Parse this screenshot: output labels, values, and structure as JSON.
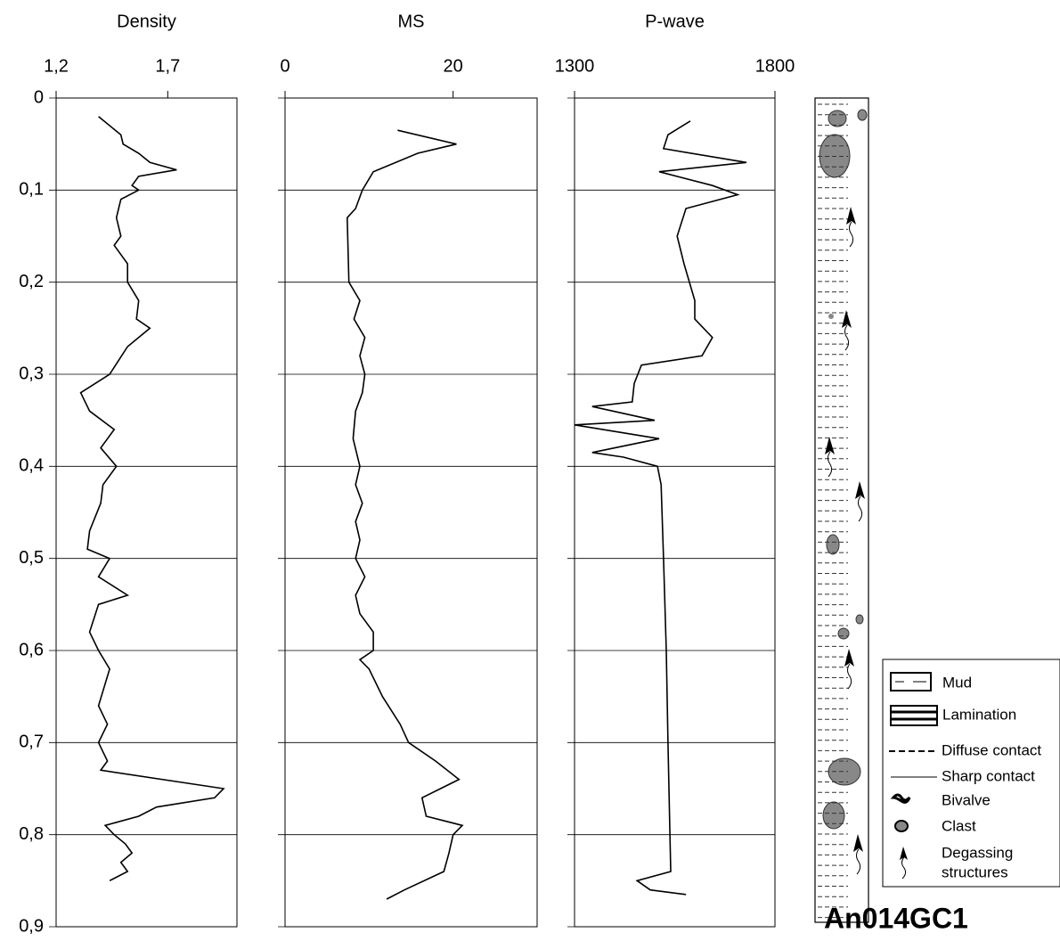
{
  "chart_data": [
    {
      "type": "line",
      "title": "Density",
      "xlim": [
        1.2,
        2.01
      ],
      "xticks": [
        {
          "value": 1.2,
          "label": "1,2"
        },
        {
          "value": 1.7,
          "label": "1,7"
        }
      ],
      "ylim": [
        0,
        0.9
      ],
      "yticks": [
        0,
        {
          "value": 0.1,
          "label": "0,1"
        },
        {
          "value": 0.2,
          "label": "0,2"
        },
        {
          "value": 0.3,
          "label": "0,3"
        },
        {
          "value": 0.4,
          "label": "0,4"
        },
        {
          "value": 0.5,
          "label": "0,5"
        },
        {
          "value": 0.6,
          "label": "0,6"
        },
        {
          "value": 0.7,
          "label": "0,7"
        },
        {
          "value": 0.8,
          "label": "0,8"
        },
        {
          "value": 0.9,
          "label": "0,9"
        }
      ],
      "grid": true,
      "color": "#000000",
      "y": [
        0.02,
        0.04,
        0.05,
        0.06,
        0.07,
        0.078,
        0.085,
        0.095,
        0.1,
        0.11,
        0.13,
        0.15,
        0.16,
        0.18,
        0.2,
        0.22,
        0.24,
        0.25,
        0.27,
        0.3,
        0.32,
        0.34,
        0.36,
        0.38,
        0.4,
        0.42,
        0.44,
        0.47,
        0.49,
        0.5,
        0.52,
        0.54,
        0.55,
        0.58,
        0.6,
        0.62,
        0.66,
        0.68,
        0.7,
        0.72,
        0.73,
        0.75,
        0.76,
        0.77,
        0.78,
        0.79,
        0.8,
        0.81,
        0.82,
        0.83,
        0.84,
        0.85
      ],
      "values": [
        1.39,
        1.49,
        1.5,
        1.57,
        1.62,
        1.74,
        1.57,
        1.54,
        1.57,
        1.49,
        1.47,
        1.49,
        1.46,
        1.52,
        1.52,
        1.57,
        1.56,
        1.62,
        1.52,
        1.44,
        1.31,
        1.35,
        1.46,
        1.4,
        1.47,
        1.41,
        1.4,
        1.35,
        1.34,
        1.44,
        1.39,
        1.52,
        1.39,
        1.35,
        1.39,
        1.44,
        1.39,
        1.43,
        1.39,
        1.43,
        1.4,
        1.95,
        1.91,
        1.65,
        1.57,
        1.42,
        1.46,
        1.51,
        1.54,
        1.49,
        1.52,
        1.44
      ]
    },
    {
      "type": "line",
      "title": "MS",
      "xlim": [
        0,
        30
      ],
      "xticks": [
        0,
        20
      ],
      "ylim": [
        0,
        0.9
      ],
      "grid": true,
      "color": "#000000",
      "y": [
        0.035,
        0.05,
        0.06,
        0.08,
        0.1,
        0.12,
        0.13,
        0.2,
        0.22,
        0.24,
        0.26,
        0.28,
        0.3,
        0.32,
        0.34,
        0.37,
        0.4,
        0.42,
        0.44,
        0.46,
        0.48,
        0.5,
        0.52,
        0.54,
        0.56,
        0.58,
        0.6,
        0.61,
        0.62,
        0.65,
        0.68,
        0.7,
        0.72,
        0.74,
        0.76,
        0.78,
        0.79,
        0.8,
        0.82,
        0.84,
        0.86,
        0.87
      ],
      "values": [
        13.4,
        20.4,
        15.8,
        10.5,
        9.2,
        8.4,
        7.4,
        7.6,
        8.9,
        8.2,
        9.5,
        8.9,
        9.5,
        9.2,
        8.4,
        8.1,
        8.9,
        8.4,
        9.2,
        8.4,
        8.9,
        8.4,
        9.5,
        8.4,
        8.9,
        10.5,
        10.5,
        8.9,
        10.0,
        11.6,
        13.7,
        14.7,
        17.9,
        20.7,
        16.3,
        16.8,
        21.1,
        20.0,
        19.5,
        18.9,
        14.2,
        12.1
      ]
    },
    {
      "type": "line",
      "title": "P-wave",
      "xlim": [
        1300,
        1800
      ],
      "xticks": [
        1300,
        1800
      ],
      "ylim": [
        0,
        0.9
      ],
      "grid": true,
      "color": "#000000",
      "y": [
        0.025,
        0.04,
        0.055,
        0.07,
        0.08,
        0.095,
        0.105,
        0.12,
        0.15,
        0.18,
        0.22,
        0.24,
        0.26,
        0.28,
        0.29,
        0.31,
        0.33,
        0.335,
        0.35,
        0.355,
        0.37,
        0.385,
        0.39,
        0.4,
        0.42,
        0.5,
        0.6,
        0.7,
        0.8,
        0.84,
        0.85,
        0.86,
        0.865
      ],
      "values": [
        1589,
        1533,
        1522,
        1729,
        1511,
        1644,
        1707,
        1578,
        1556,
        1573,
        1600,
        1600,
        1644,
        1618,
        1467,
        1449,
        1444,
        1344,
        1500,
        1300,
        1511,
        1344,
        1422,
        1507,
        1516,
        1522,
        1529,
        1533,
        1538,
        1540,
        1456,
        1489,
        1578
      ]
    }
  ],
  "legend": [
    "Mud",
    "Lamination",
    "Diffuse contact",
    "Sharp contact",
    "Bivalve",
    "Clast",
    "Degassing",
    "structures"
  ],
  "core_title": "An014GC1"
}
